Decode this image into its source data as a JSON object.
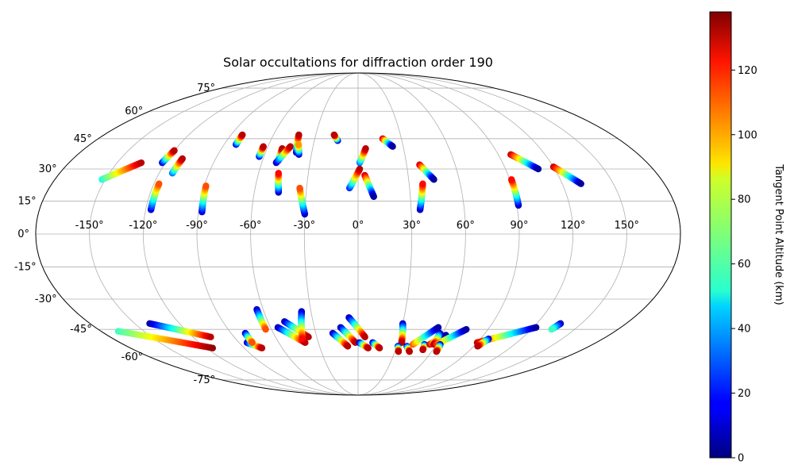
{
  "chart_data": {
    "type": "scatter",
    "projection": "mollweide",
    "title": "Solar occultations for diffraction order 190",
    "grid": true,
    "longitude_ticks": [
      -150,
      -120,
      -90,
      -60,
      -30,
      0,
      30,
      60,
      90,
      120,
      150
    ],
    "latitude_ticks": [
      -75,
      -60,
      -45,
      -30,
      -15,
      0,
      15,
      30,
      45,
      60,
      75
    ],
    "longitude_labels": [
      "-150°",
      "-120°",
      "-90°",
      "-60°",
      "-30°",
      "0°",
      "30°",
      "60°",
      "90°",
      "120°",
      "150°"
    ],
    "latitude_labels": [
      "-75°",
      "-60°",
      "-45°",
      "-30°",
      "-15°",
      "0°",
      "15°",
      "30°",
      "45°",
      "60°",
      "75°"
    ],
    "colorbar": {
      "label": "Tangent Point Altitude (km)",
      "range": [
        0,
        138
      ],
      "ticks": [
        0,
        20,
        40,
        60,
        80,
        100,
        120
      ],
      "tick_labels": [
        "0",
        "20",
        "40",
        "60",
        "80",
        "100",
        "120"
      ],
      "colormap": "jet"
    },
    "tracks": [
      {
        "lon_start": -152,
        "lat_start": 25,
        "lon_end": -135,
        "lat_end": 33,
        "alt_start": 55,
        "alt_end": 130
      },
      {
        "lon_start": -122,
        "lat_start": 33,
        "lon_end": -120,
        "lat_end": 39,
        "alt_start": 10,
        "alt_end": 130
      },
      {
        "lon_start": -112,
        "lat_start": 28,
        "lon_end": -111,
        "lat_end": 35,
        "alt_start": 30,
        "alt_end": 130
      },
      {
        "lon_start": -117,
        "lat_start": 11,
        "lon_end": -117,
        "lat_end": 23,
        "alt_start": 10,
        "alt_end": 110
      },
      {
        "lon_start": -88,
        "lat_start": 10,
        "lon_end": -89,
        "lat_end": 22,
        "alt_start": 10,
        "alt_end": 110
      },
      {
        "lon_start": -82,
        "lat_start": 42,
        "lon_end": -82,
        "lat_end": 47,
        "alt_start": 10,
        "alt_end": 130
      },
      {
        "lon_start": -63,
        "lat_start": 36,
        "lon_end": -63,
        "lat_end": 41,
        "alt_start": 10,
        "alt_end": 130
      },
      {
        "lon_start": -50,
        "lat_start": 34,
        "lon_end": -50,
        "lat_end": 40,
        "alt_start": 20,
        "alt_end": 130
      },
      {
        "lon_start": -51,
        "lat_start": 33,
        "lon_end": -45,
        "lat_end": 41,
        "alt_start": 5,
        "alt_end": 130
      },
      {
        "lon_start": -46,
        "lat_start": 19,
        "lon_end": -48,
        "lat_end": 28,
        "alt_start": 5,
        "alt_end": 120
      },
      {
        "lon_start": -40,
        "lat_start": 38,
        "lon_end": -42,
        "lat_end": 47,
        "alt_start": 5,
        "alt_end": 130
      },
      {
        "lon_start": -38,
        "lat_start": 37,
        "lon_end": -40,
        "lat_end": 42,
        "alt_start": 5,
        "alt_end": 100
      },
      {
        "lon_start": -30,
        "lat_start": 9,
        "lon_end": -34,
        "lat_end": 21,
        "alt_start": 5,
        "alt_end": 110
      },
      {
        "lon_start": -14,
        "lat_start": 44,
        "lon_end": -17,
        "lat_end": 47,
        "alt_start": 5,
        "alt_end": 130
      },
      {
        "lon_start": -5,
        "lat_start": 21,
        "lon_end": 1,
        "lat_end": 30,
        "alt_start": 20,
        "alt_end": 130
      },
      {
        "lon_start": 1,
        "lat_start": 33,
        "lon_end": 5,
        "lat_end": 40,
        "alt_start": 30,
        "alt_end": 130
      },
      {
        "lon_start": 4,
        "lat_start": 27,
        "lon_end": 9,
        "lat_end": 17,
        "alt_start": 130,
        "alt_end": 5
      },
      {
        "lon_start": 17,
        "lat_start": 45,
        "lon_end": 23,
        "lat_end": 41,
        "alt_start": 130,
        "alt_end": 5
      },
      {
        "lon_start": 35,
        "lat_start": 11,
        "lon_end": 38,
        "lat_end": 23,
        "alt_start": 5,
        "alt_end": 120
      },
      {
        "lon_start": 38,
        "lat_start": 32,
        "lon_end": 45,
        "lat_end": 25,
        "alt_start": 130,
        "alt_end": 5
      },
      {
        "lon_start": 91,
        "lat_start": 13,
        "lon_end": 91,
        "lat_end": 25,
        "alt_start": 5,
        "alt_end": 120
      },
      {
        "lon_start": 98,
        "lat_start": 37,
        "lon_end": 110,
        "lat_end": 30,
        "alt_start": 130,
        "alt_end": 5
      },
      {
        "lon_start": 120,
        "lat_start": 31,
        "lon_end": 131,
        "lat_end": 23,
        "alt_start": 130,
        "alt_end": 5
      },
      {
        "lon_start": -140,
        "lat_start": -42,
        "lon_end": -107,
        "lat_end": -49,
        "alt_start": 5,
        "alt_end": 130
      },
      {
        "lon_start": -168,
        "lat_start": -46,
        "lon_end": -115,
        "lat_end": -55,
        "alt_start": 60,
        "alt_end": 135
      },
      {
        "lon_start": -84,
        "lat_start": -52,
        "lon_end": -76,
        "lat_end": -55,
        "alt_start": 5,
        "alt_end": 130
      },
      {
        "lon_start": -80,
        "lat_start": -47,
        "lon_end": -80,
        "lat_end": -52,
        "alt_start": 5,
        "alt_end": 110
      },
      {
        "lon_start": -64,
        "lat_start": -35,
        "lon_end": -64,
        "lat_end": -45,
        "alt_start": 5,
        "alt_end": 110
      },
      {
        "lon_start": -55,
        "lat_start": -44,
        "lon_end": -40,
        "lat_end": -52,
        "alt_start": 5,
        "alt_end": 130
      },
      {
        "lon_start": -49,
        "lat_start": -41,
        "lon_end": -36,
        "lat_end": -49,
        "alt_start": 5,
        "alt_end": 130
      },
      {
        "lon_start": -36,
        "lat_start": -36,
        "lon_end": -41,
        "lat_end": -50,
        "alt_start": 5,
        "alt_end": 120
      },
      {
        "lon_start": -18,
        "lat_start": -47,
        "lon_end": -8,
        "lat_end": -54,
        "alt_start": 5,
        "alt_end": 130
      },
      {
        "lon_start": -12,
        "lat_start": -44,
        "lon_end": -2,
        "lat_end": -52,
        "alt_start": 5,
        "alt_end": 130
      },
      {
        "lon_start": -6,
        "lat_start": -39,
        "lon_end": 5,
        "lat_end": -49,
        "alt_start": 5,
        "alt_end": 130
      },
      {
        "lon_start": 1,
        "lat_start": -52,
        "lon_end": 8,
        "lat_end": -55,
        "alt_start": 5,
        "alt_end": 130
      },
      {
        "lon_start": 11,
        "lat_start": -52,
        "lon_end": 17,
        "lat_end": -55,
        "alt_start": 5,
        "alt_end": 130
      },
      {
        "lon_start": 30,
        "lat_start": -42,
        "lon_end": 33,
        "lat_end": -52,
        "alt_start": 5,
        "alt_end": 130
      },
      {
        "lon_start": 31,
        "lat_start": -54,
        "lon_end": 33,
        "lat_end": -57,
        "alt_start": 5,
        "alt_end": 130
      },
      {
        "lon_start": 38,
        "lat_start": -54,
        "lon_end": 42,
        "lat_end": -57,
        "alt_start": 5,
        "alt_end": 130
      },
      {
        "lon_start": 42,
        "lat_start": -53,
        "lon_end": 55,
        "lat_end": -44,
        "alt_start": 110,
        "alt_end": 5
      },
      {
        "lon_start": 51,
        "lat_start": -53,
        "lon_end": 52,
        "lat_end": -56,
        "alt_start": 5,
        "alt_end": 130
      },
      {
        "lon_start": 55,
        "lat_start": -53,
        "lon_end": 63,
        "lat_end": -48,
        "alt_start": 130,
        "alt_end": 5
      },
      {
        "lon_start": 58,
        "lat_start": -47,
        "lon_end": 58,
        "lat_end": -53,
        "alt_start": 5,
        "alt_end": 130
      },
      {
        "lon_start": 60,
        "lat_start": -53,
        "lon_end": 75,
        "lat_end": -45,
        "alt_start": 120,
        "alt_end": 5
      },
      {
        "lon_start": 63,
        "lat_start": -53,
        "lon_end": 64,
        "lat_end": -57,
        "alt_start": 5,
        "alt_end": 130
      },
      {
        "lon_start": 90,
        "lat_start": -52,
        "lon_end": 122,
        "lat_end": -44,
        "alt_start": 130,
        "alt_end": 5
      },
      {
        "lon_start": 96,
        "lat_start": -50,
        "lon_end": 93,
        "lat_end": -54,
        "alt_start": 5,
        "alt_end": 130
      },
      {
        "lon_start": 136,
        "lat_start": -42,
        "lon_end": 134,
        "lat_end": -45,
        "alt_start": 5,
        "alt_end": 60
      }
    ]
  }
}
